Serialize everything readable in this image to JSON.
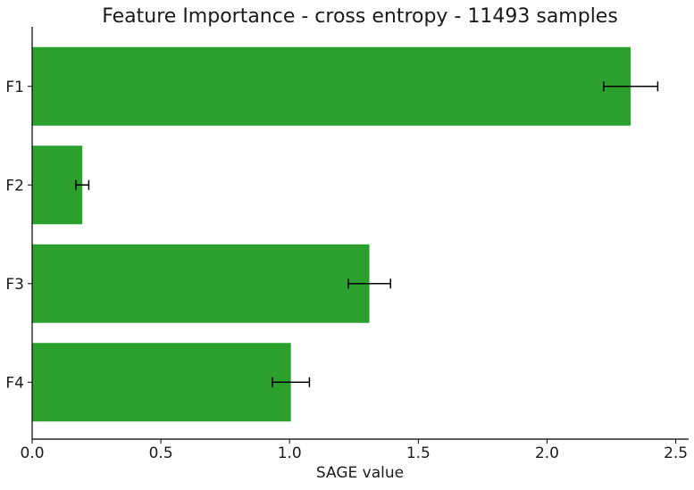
{
  "chart_data": {
    "type": "bar",
    "orientation": "horizontal",
    "title": "Feature Importance - cross entropy - 11493 samples",
    "xlabel": "SAGE value",
    "ylabel": "",
    "categories": [
      "F1",
      "F2",
      "F3",
      "F4"
    ],
    "values": [
      2.325,
      0.195,
      1.31,
      1.005
    ],
    "errors": [
      0.105,
      0.025,
      0.082,
      0.072
    ],
    "xlim": [
      0,
      2.55
    ],
    "xticks": [
      0.0,
      0.5,
      1.0,
      1.5,
      2.0,
      2.5
    ],
    "xtick_labels": [
      "0.0",
      "0.5",
      "1.0",
      "1.5",
      "2.0",
      "2.5"
    ],
    "grid": false,
    "legend": "none",
    "bar_color": "#2ca02c",
    "errorbar_color": "#000000"
  }
}
